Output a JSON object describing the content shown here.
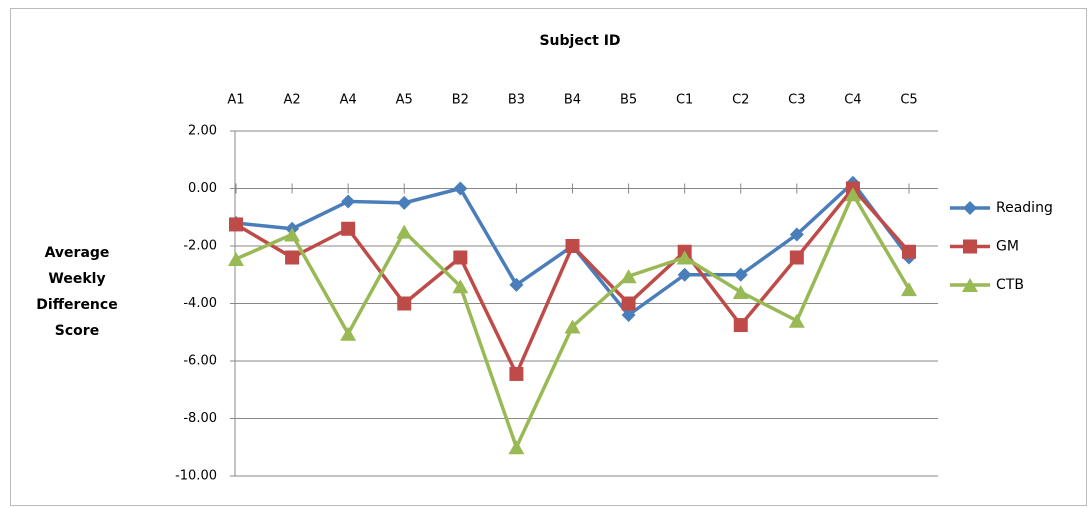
{
  "chart_data": {
    "type": "line",
    "title": "Subject ID",
    "y_label": "Average Weekly Difference Score",
    "categories": [
      "A1",
      "A2",
      "A4",
      "A5",
      "B2",
      "B3",
      "B4",
      "B5",
      "C1",
      "C2",
      "C3",
      "C4",
      "C5"
    ],
    "series": [
      {
        "name": "Reading",
        "color": "#4a7ebb",
        "values": [
          -1.2,
          -1.4,
          -0.45,
          -0.5,
          0,
          -3.35,
          -2.0,
          -4.4,
          -3.0,
          -3.0,
          -1.6,
          0.2,
          -2.4
        ]
      },
      {
        "name": "GM",
        "color": "#be4b48",
        "values": [
          -1.25,
          -2.4,
          -1.4,
          -4.0,
          -2.4,
          -6.45,
          -2.0,
          -4.0,
          -2.2,
          -4.75,
          -2.4,
          0.0,
          -2.2
        ]
      },
      {
        "name": "CTB",
        "color": "#98b954",
        "values": [
          -2.45,
          -1.6,
          -5.05,
          -1.5,
          -3.4,
          -9.0,
          -4.8,
          -3.05,
          -2.4,
          -3.6,
          -4.6,
          -0.2,
          -3.5
        ]
      }
    ],
    "ylim": [
      -10,
      2
    ],
    "yticks": [
      {
        "value": 2,
        "label": "2.00"
      },
      {
        "value": 0,
        "label": "0.00"
      },
      {
        "value": -2,
        "label": "-2.00"
      },
      {
        "value": -4,
        "label": "-4.00"
      },
      {
        "value": -6,
        "label": "-6.00"
      },
      {
        "value": -8,
        "label": "-8.00"
      },
      {
        "value": -10,
        "label": "-10.00"
      }
    ],
    "grid": true,
    "legend": "right"
  }
}
